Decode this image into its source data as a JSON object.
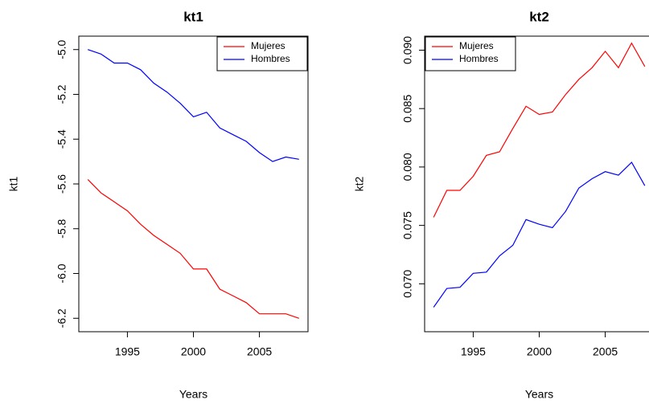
{
  "chart_data": [
    {
      "type": "line",
      "title": "kt1",
      "x_label": "Years",
      "y_label": "kt1",
      "x": [
        1992,
        1993,
        1994,
        1995,
        1996,
        1997,
        1998,
        1999,
        2000,
        2001,
        2002,
        2003,
        2004,
        2005,
        2006,
        2007,
        2008
      ],
      "xlim": [
        1991.32,
        2008.68
      ],
      "xticks": [
        1995,
        2000,
        2005
      ],
      "ylim": [
        -6.26,
        -4.94
      ],
      "yticks": [
        {
          "value": -5.0,
          "label": "-5.0"
        },
        -5.2,
        -5.4,
        -5.6,
        -5.8,
        {
          "value": -6.0,
          "label": "-6.0"
        },
        -6.2
      ],
      "legend": "topright",
      "series": [
        {
          "name": "Mujeres",
          "color": "#ff0000",
          "values": [
            -5.58,
            -5.64,
            -5.68,
            -5.72,
            -5.78,
            -5.83,
            -5.87,
            -5.91,
            -5.98,
            -5.98,
            -6.07,
            -6.1,
            -6.13,
            -6.18,
            -6.18,
            -6.18,
            -6.2
          ]
        },
        {
          "name": "Hombres",
          "color": "#0000ff",
          "values": [
            -5.0,
            -5.02,
            -5.06,
            -5.06,
            -5.09,
            -5.15,
            -5.19,
            -5.24,
            -5.3,
            -5.28,
            -5.35,
            -5.38,
            -5.41,
            -5.46,
            -5.5,
            -5.48,
            -5.49
          ]
        }
      ]
    },
    {
      "type": "line",
      "title": "kt2",
      "x_label": "Years",
      "y_label": "kt2",
      "x": [
        1992,
        1993,
        1994,
        1995,
        1996,
        1997,
        1998,
        1999,
        2000,
        2001,
        2002,
        2003,
        2004,
        2005,
        2006,
        2007,
        2008
      ],
      "xlim": [
        1991.32,
        2008.68
      ],
      "xticks": [
        1995,
        2000,
        2005
      ],
      "ylim": [
        0.0659,
        0.0912
      ],
      "yticks": [
        {
          "value": 0.07,
          "label": "0.070"
        },
        0.075,
        {
          "value": 0.08,
          "label": "0.080"
        },
        0.085,
        {
          "value": 0.09,
          "label": "0.090"
        }
      ],
      "legend": "topleft",
      "series": [
        {
          "name": "Mujeres",
          "color": "#ff0000",
          "values": [
            0.0757,
            0.078,
            0.078,
            0.0792,
            0.081,
            0.0813,
            0.0833,
            0.0852,
            0.0845,
            0.0847,
            0.0862,
            0.0875,
            0.0885,
            0.0899,
            0.0885,
            0.0906,
            0.0886
          ]
        },
        {
          "name": "Hombres",
          "color": "#0000ff",
          "values": [
            0.068,
            0.0696,
            0.0697,
            0.0709,
            0.071,
            0.0724,
            0.0733,
            0.0755,
            0.0751,
            0.0748,
            0.0762,
            0.0782,
            0.079,
            0.0796,
            0.0793,
            0.0804,
            0.0784
          ]
        }
      ]
    }
  ]
}
